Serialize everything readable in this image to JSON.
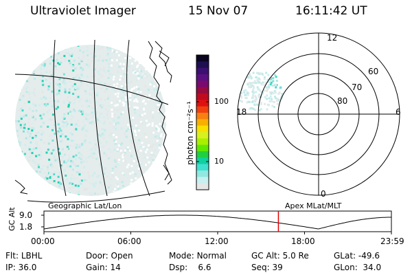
{
  "header": {
    "instrument": "Ultraviolet Imager",
    "date": "15 Nov 07",
    "time": "16:11:42 UT"
  },
  "colorbar": {
    "unit_label": "photon cm⁻²s⁻¹",
    "tick_labels": [
      "100",
      "10"
    ],
    "scale": "log",
    "colors": [
      "#0a0420",
      "#1e1050",
      "#3a1070",
      "#5a1080",
      "#7a0a70",
      "#980a40",
      "#c00a20",
      "#e01010",
      "#f04010",
      "#f88010",
      "#f8b000",
      "#f8e000",
      "#d8f020",
      "#a8f000",
      "#60e800",
      "#20d040",
      "#10d0a0",
      "#40e0d0",
      "#90e8e0",
      "#c8f0f0",
      "#e6e6e6"
    ]
  },
  "left_panel": {
    "projection_label": "Geographic Lat/Lon"
  },
  "right_panel": {
    "projection_label": "Apex MLat/MLT",
    "mlt_labels": {
      "top": "12",
      "right": "6",
      "bottom": "0",
      "left": "18"
    },
    "mlat_labels": [
      "60",
      "70",
      "80"
    ]
  },
  "timeline": {
    "axis_title": "GC Alt",
    "y_ticks": [
      "9.0",
      "1.8"
    ],
    "x_ticks": [
      "00:00",
      "06:00",
      "12:00",
      "18:00",
      "23:59"
    ],
    "current_time_fraction": 0.6748,
    "curve_color": "#000000",
    "marker_color": "#e00000"
  },
  "status": {
    "row1": [
      {
        "k": "Flt:",
        "v": "LBHL"
      },
      {
        "k": "Door:",
        "v": "Open"
      },
      {
        "k": "Mode:",
        "v": "Normal"
      },
      {
        "k": "GC Alt:",
        "v": "5.0 Re"
      },
      {
        "k": "GLat:",
        "v": "-49.6"
      }
    ],
    "row2": [
      {
        "k": "IP:",
        "v": "36.0"
      },
      {
        "k": "Gain:",
        "v": "14"
      },
      {
        "k": "Dsp:",
        "v": "6.6"
      },
      {
        "k": "Seq:",
        "v": "39"
      },
      {
        "k": "GLon:",
        "v": "34.0"
      }
    ]
  }
}
